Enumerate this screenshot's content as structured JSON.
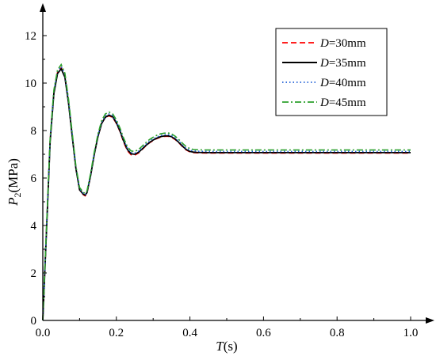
{
  "chart_data": {
    "type": "line",
    "xlabel": {
      "var": "T",
      "unit": "(s)"
    },
    "ylabel": {
      "var": "P",
      "sub": "2",
      "unit": "(MPa)"
    },
    "xlim": [
      0,
      1.0
    ],
    "ylim": [
      0,
      12
    ],
    "x_ticks": [
      "0.0",
      "0.2",
      "0.4",
      "0.6",
      "0.8",
      "1.0"
    ],
    "y_ticks": [
      "0",
      "2",
      "4",
      "6",
      "8",
      "10",
      "12"
    ],
    "grid": false,
    "legend_position": "top-right",
    "series": [
      {
        "name": "D=30mm",
        "legend_var": "D",
        "legend_rest": "=30mm",
        "color": "#ff0000",
        "style": "dashed",
        "x": [
          0,
          0.01,
          0.02,
          0.03,
          0.04,
          0.05,
          0.06,
          0.07,
          0.08,
          0.09,
          0.1,
          0.11,
          0.115,
          0.12,
          0.13,
          0.14,
          0.15,
          0.16,
          0.17,
          0.18,
          0.19,
          0.2,
          0.21,
          0.22,
          0.23,
          0.24,
          0.25,
          0.26,
          0.27,
          0.28,
          0.29,
          0.3,
          0.31,
          0.32,
          0.33,
          0.34,
          0.35,
          0.36,
          0.37,
          0.38,
          0.39,
          0.4,
          0.41,
          0.42,
          0.45,
          0.5,
          0.6,
          0.7,
          0.8,
          0.9,
          1.0
        ],
        "values": [
          0,
          3.8,
          7.6,
          9.6,
          10.45,
          10.65,
          10.3,
          9.2,
          7.8,
          6.4,
          5.5,
          5.3,
          5.25,
          5.35,
          6.1,
          7.0,
          7.75,
          8.3,
          8.55,
          8.62,
          8.55,
          8.3,
          7.95,
          7.5,
          7.15,
          6.98,
          6.96,
          7.05,
          7.2,
          7.35,
          7.48,
          7.58,
          7.66,
          7.72,
          7.75,
          7.76,
          7.72,
          7.62,
          7.48,
          7.32,
          7.18,
          7.1,
          7.07,
          7.06,
          7.05,
          7.05,
          7.05,
          7.05,
          7.05,
          7.05,
          7.05
        ]
      },
      {
        "name": "D=35mm",
        "legend_var": "D",
        "legend_rest": "=35mm",
        "color": "#000000",
        "style": "solid",
        "x": [
          0,
          0.01,
          0.02,
          0.03,
          0.04,
          0.05,
          0.06,
          0.07,
          0.08,
          0.09,
          0.1,
          0.11,
          0.115,
          0.12,
          0.13,
          0.14,
          0.15,
          0.16,
          0.17,
          0.18,
          0.19,
          0.2,
          0.21,
          0.22,
          0.23,
          0.24,
          0.25,
          0.26,
          0.27,
          0.28,
          0.29,
          0.3,
          0.31,
          0.32,
          0.33,
          0.34,
          0.35,
          0.36,
          0.37,
          0.38,
          0.39,
          0.4,
          0.41,
          0.42,
          0.45,
          0.5,
          0.6,
          0.7,
          0.8,
          0.9,
          1.0
        ],
        "values": [
          0,
          3.75,
          7.55,
          9.55,
          10.4,
          10.6,
          10.25,
          9.15,
          7.75,
          6.4,
          5.5,
          5.32,
          5.28,
          5.38,
          6.1,
          7.0,
          7.75,
          8.3,
          8.56,
          8.65,
          8.58,
          8.33,
          7.98,
          7.55,
          7.2,
          7.02,
          7.0,
          7.08,
          7.22,
          7.37,
          7.5,
          7.6,
          7.68,
          7.74,
          7.77,
          7.78,
          7.74,
          7.64,
          7.5,
          7.34,
          7.2,
          7.12,
          7.09,
          7.08,
          7.07,
          7.07,
          7.07,
          7.07,
          7.07,
          7.07,
          7.07
        ]
      },
      {
        "name": "D=40mm",
        "legend_var": "D",
        "legend_rest": "=40mm",
        "color": "#1f5fd6",
        "style": "dotted",
        "x": [
          0,
          0.01,
          0.02,
          0.03,
          0.04,
          0.05,
          0.06,
          0.07,
          0.08,
          0.09,
          0.1,
          0.11,
          0.115,
          0.12,
          0.13,
          0.14,
          0.15,
          0.16,
          0.17,
          0.18,
          0.19,
          0.2,
          0.21,
          0.22,
          0.23,
          0.24,
          0.25,
          0.26,
          0.27,
          0.28,
          0.29,
          0.3,
          0.31,
          0.32,
          0.33,
          0.34,
          0.35,
          0.36,
          0.37,
          0.38,
          0.39,
          0.4,
          0.41,
          0.42,
          0.45,
          0.5,
          0.6,
          0.7,
          0.8,
          0.9,
          1.0
        ],
        "values": [
          0,
          3.85,
          7.65,
          9.65,
          10.5,
          10.7,
          10.35,
          9.25,
          7.85,
          6.45,
          5.55,
          5.35,
          5.3,
          5.4,
          6.15,
          7.05,
          7.8,
          8.35,
          8.62,
          8.7,
          8.63,
          8.38,
          8.03,
          7.6,
          7.25,
          7.07,
          7.05,
          7.13,
          7.27,
          7.42,
          7.55,
          7.65,
          7.73,
          7.79,
          7.82,
          7.83,
          7.79,
          7.69,
          7.55,
          7.39,
          7.25,
          7.17,
          7.14,
          7.13,
          7.12,
          7.12,
          7.12,
          7.12,
          7.12,
          7.12,
          7.12
        ]
      },
      {
        "name": "D=45mm",
        "legend_var": "D",
        "legend_rest": "=45mm",
        "color": "#2ca02c",
        "style": "dashdot",
        "x": [
          0,
          0.01,
          0.02,
          0.03,
          0.04,
          0.05,
          0.06,
          0.07,
          0.08,
          0.09,
          0.1,
          0.11,
          0.115,
          0.12,
          0.13,
          0.14,
          0.15,
          0.16,
          0.17,
          0.18,
          0.19,
          0.2,
          0.21,
          0.22,
          0.23,
          0.24,
          0.25,
          0.26,
          0.27,
          0.28,
          0.29,
          0.3,
          0.31,
          0.32,
          0.33,
          0.34,
          0.35,
          0.36,
          0.37,
          0.38,
          0.39,
          0.4,
          0.41,
          0.42,
          0.45,
          0.5,
          0.6,
          0.7,
          0.8,
          0.9,
          1.0
        ],
        "values": [
          0,
          3.9,
          7.7,
          9.7,
          10.55,
          10.78,
          10.42,
          9.32,
          7.9,
          6.5,
          5.6,
          5.4,
          5.35,
          5.45,
          6.2,
          7.1,
          7.85,
          8.42,
          8.7,
          8.78,
          8.7,
          8.45,
          8.1,
          7.67,
          7.32,
          7.14,
          7.12,
          7.2,
          7.34,
          7.49,
          7.62,
          7.72,
          7.8,
          7.86,
          7.89,
          7.9,
          7.86,
          7.76,
          7.62,
          7.46,
          7.32,
          7.24,
          7.2,
          7.19,
          7.18,
          7.18,
          7.18,
          7.18,
          7.18,
          7.18,
          7.18
        ]
      }
    ]
  }
}
